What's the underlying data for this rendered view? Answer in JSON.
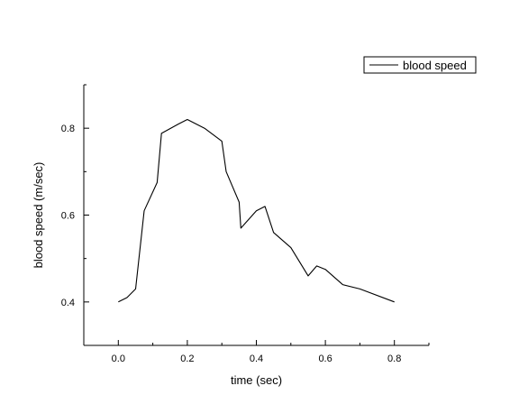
{
  "chart_data": {
    "type": "line",
    "xlabel": "time (sec)",
    "ylabel": "blood speed (m/sec)",
    "xlim": [
      -0.1,
      0.9
    ],
    "ylim": [
      0.3,
      0.9
    ],
    "x_ticks": [
      0.0,
      0.2,
      0.4,
      0.6,
      0.8
    ],
    "x_tick_labels": [
      "0.0",
      "0.2",
      "0.4",
      "0.6",
      "0.8"
    ],
    "y_ticks": [
      0.4,
      0.6,
      0.8
    ],
    "y_tick_labels": [
      "0.4",
      "0.6",
      "0.8"
    ],
    "grid": false,
    "legend_position": "top-right",
    "series": [
      {
        "name": "blood speed",
        "color": "#000000",
        "x": [
          0.0,
          0.025,
          0.05,
          0.075,
          0.1125,
          0.125,
          0.175,
          0.2,
          0.25,
          0.3,
          0.3125,
          0.35,
          0.355,
          0.4,
          0.425,
          0.45,
          0.5,
          0.55,
          0.575,
          0.6,
          0.65,
          0.7,
          0.8
        ],
        "y": [
          0.4,
          0.41,
          0.43,
          0.61,
          0.675,
          0.788,
          0.81,
          0.82,
          0.8,
          0.77,
          0.7,
          0.63,
          0.57,
          0.61,
          0.62,
          0.56,
          0.525,
          0.46,
          0.483,
          0.475,
          0.44,
          0.43,
          0.4
        ]
      }
    ]
  }
}
